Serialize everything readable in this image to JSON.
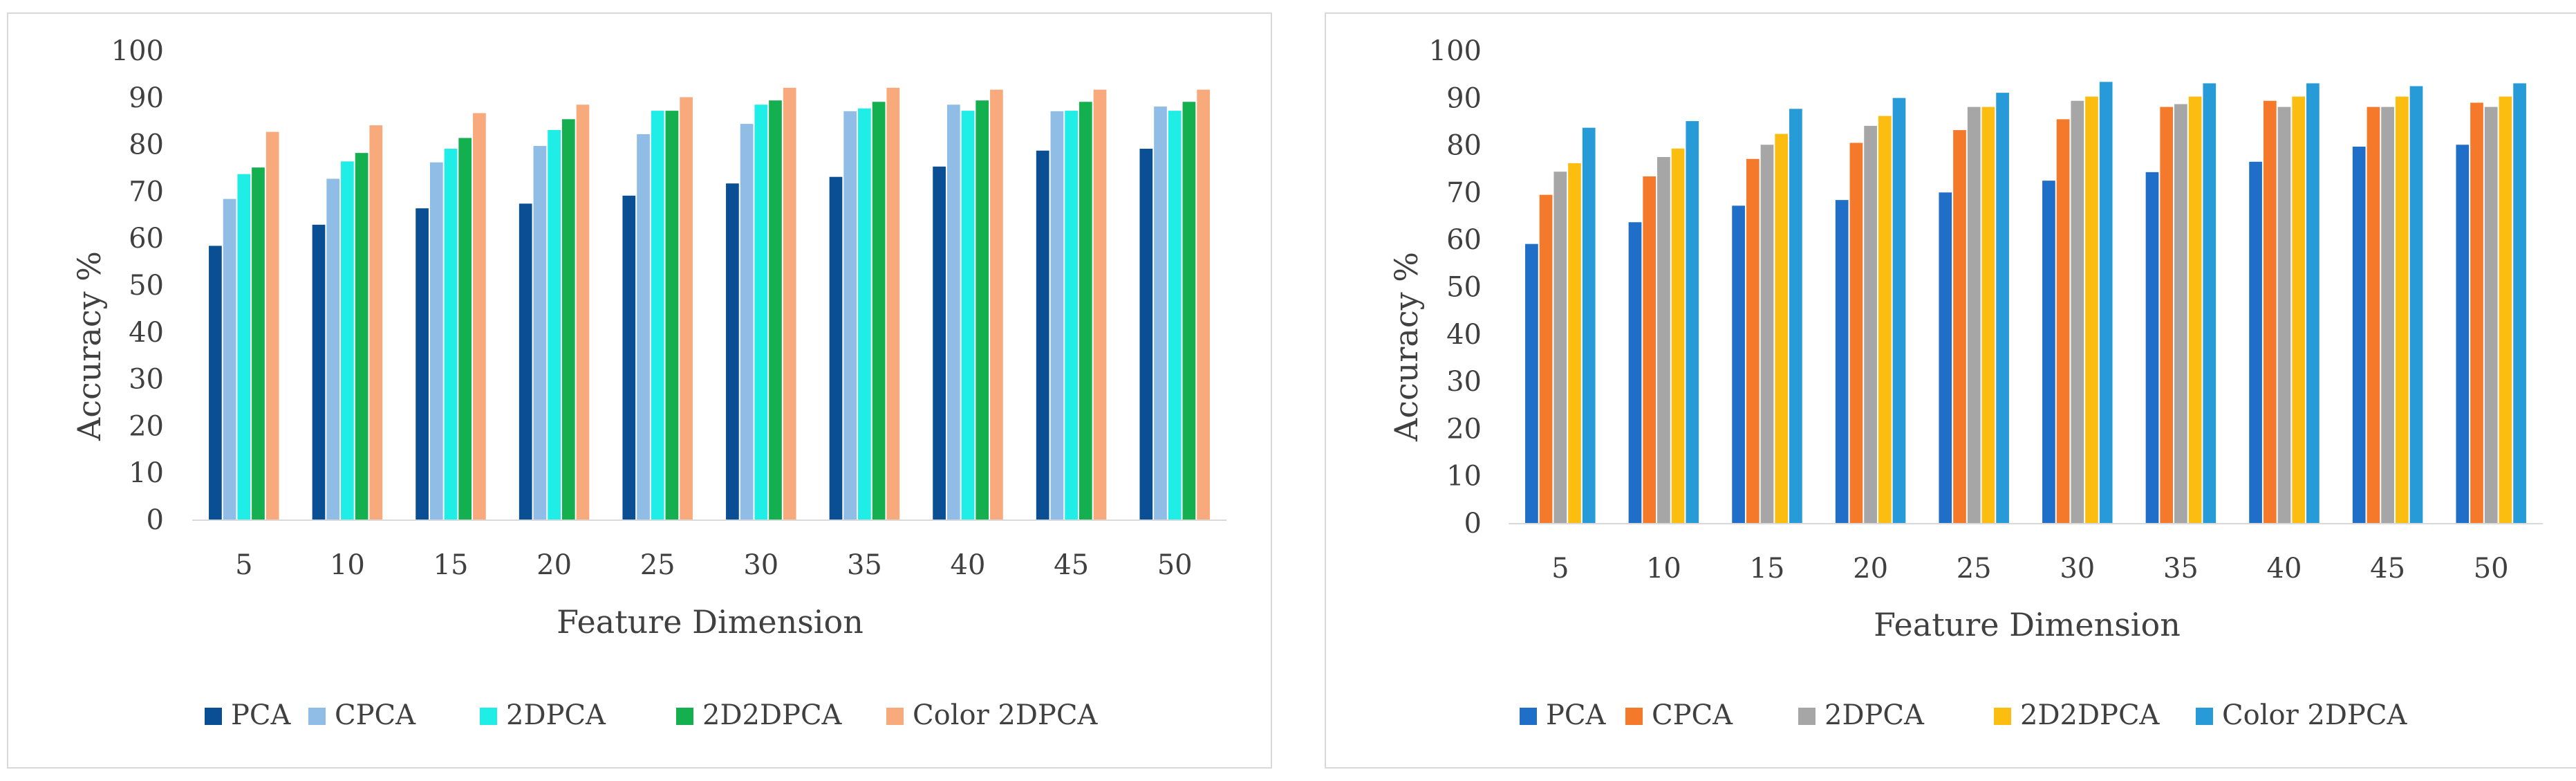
{
  "chart_data": [
    {
      "type": "bar",
      "title": "",
      "xlabel": "Feature Dimension",
      "ylabel": "Accuracy %",
      "ylim": [
        0,
        100
      ],
      "yticks": [
        "0",
        "10",
        "20",
        "30",
        "40",
        "50",
        "60",
        "70",
        "80",
        "90",
        "100"
      ],
      "grid": false,
      "legend": "bottom",
      "categories": [
        "5",
        "10",
        "15",
        "20",
        "25",
        "30",
        "35",
        "40",
        "45",
        "50"
      ],
      "series": [
        {
          "name": "PCA",
          "color": "#0a4f94",
          "values": [
            58.5,
            63,
            66.5,
            67.5,
            69.2,
            71.8,
            73.2,
            75.4,
            78.8,
            79.2
          ]
        },
        {
          "name": "CPCA",
          "color": "#8fbde6",
          "values": [
            68.5,
            72.8,
            76.3,
            79.8,
            82.3,
            84.5,
            87.2,
            88.6,
            87.2,
            88.2
          ]
        },
        {
          "name": "2DPCA",
          "color": "#1eeee6",
          "values": [
            73.8,
            76.5,
            79.2,
            83.2,
            87.3,
            88.6,
            87.8,
            87.3,
            87.3,
            87.3
          ]
        },
        {
          "name": "2D2DPCA",
          "color": "#14b04f",
          "values": [
            75.2,
            78.3,
            81.5,
            85.5,
            87.3,
            89.5,
            89.2,
            89.5,
            89.2,
            89.2
          ]
        },
        {
          "name": "Color 2DPCA",
          "color": "#f8aa7c",
          "values": [
            82.8,
            84.2,
            86.8,
            88.6,
            90.2,
            92.2,
            92.2,
            91.8,
            91.8,
            91.8
          ]
        }
      ]
    },
    {
      "type": "bar",
      "title": "",
      "xlabel": "Feature Dimension",
      "ylabel": "Accuracy %",
      "ylim": [
        0,
        100
      ],
      "yticks": [
        "0",
        "10",
        "20",
        "30",
        "40",
        "50",
        "60",
        "70",
        "80",
        "90",
        "100"
      ],
      "grid": false,
      "legend": "bottom",
      "categories": [
        "5",
        "10",
        "15",
        "20",
        "25",
        "30",
        "35",
        "40",
        "45",
        "50"
      ],
      "series": [
        {
          "name": "PCA",
          "color": "#1f6fc9",
          "values": [
            59.2,
            63.8,
            67.3,
            68.5,
            70.1,
            72.6,
            74.4,
            76.6,
            79.8,
            80.2
          ]
        },
        {
          "name": "CPCA",
          "color": "#f5792a",
          "values": [
            69.6,
            73.5,
            77.2,
            80.6,
            83.3,
            85.6,
            88.2,
            89.5,
            88.2,
            89.1
          ]
        },
        {
          "name": "2DPCA",
          "color": "#a6a6a6",
          "values": [
            74.5,
            77.6,
            80.2,
            84.2,
            88.2,
            89.5,
            88.8,
            88.2,
            88.2,
            88.2
          ]
        },
        {
          "name": "2D2DPCA",
          "color": "#fbbe10",
          "values": [
            76.3,
            79.4,
            82.5,
            86.3,
            88.2,
            90.4,
            90.4,
            90.4,
            90.4,
            90.4
          ]
        },
        {
          "name": "Color 2DPCA",
          "color": "#279bd8",
          "values": [
            83.8,
            85.2,
            87.8,
            90.1,
            91.2,
            93.5,
            93.2,
            93.2,
            92.6,
            93.2
          ]
        }
      ]
    }
  ]
}
